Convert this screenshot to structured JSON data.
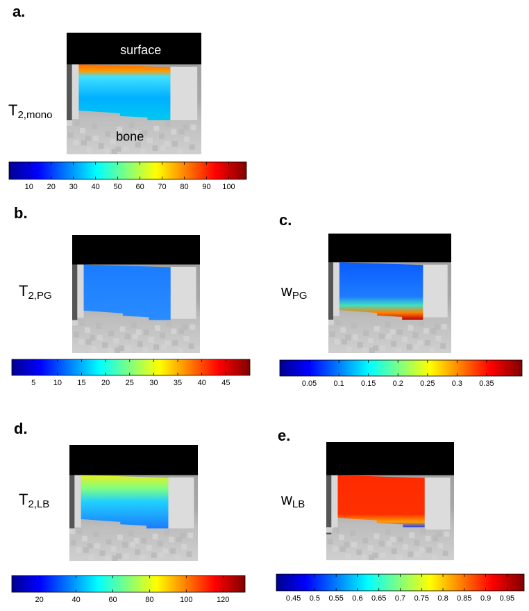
{
  "panels": [
    {
      "label": "a.",
      "param": {
        "main": "T",
        "sub": "2,mono"
      },
      "surface": "surface",
      "bone": "bone",
      "colorbar": {
        "lim": [
          1,
          108
        ],
        "ticks": [
          10,
          20,
          30,
          40,
          50,
          60,
          70,
          80,
          90,
          100
        ]
      }
    },
    {
      "label": "b.",
      "param": {
        "main": "T",
        "sub": "2,PG"
      },
      "colorbar": {
        "lim": [
          0.5,
          50
        ],
        "ticks": [
          5,
          10,
          15,
          20,
          25,
          30,
          35,
          40,
          45
        ]
      }
    },
    {
      "label": "c.",
      "param": {
        "main": "w",
        "sub": "PG"
      },
      "colorbar": {
        "lim": [
          0,
          0.41
        ],
        "ticks": [
          0.05,
          0.1,
          0.15,
          0.2,
          0.25,
          0.3,
          0.35
        ]
      }
    },
    {
      "label": "d.",
      "param": {
        "main": "T",
        "sub": "2,LB"
      },
      "colorbar": {
        "lim": [
          5,
          132
        ],
        "ticks": [
          20,
          40,
          60,
          80,
          100,
          120
        ]
      }
    },
    {
      "label": "e.",
      "param": {
        "main": "w",
        "sub": "LB"
      },
      "colorbar": {
        "lim": [
          0.41,
          0.99
        ],
        "ticks": [
          0.45,
          0.5,
          0.55,
          0.6,
          0.65,
          0.7,
          0.75,
          0.8,
          0.85,
          0.9,
          0.95
        ]
      }
    }
  ]
}
